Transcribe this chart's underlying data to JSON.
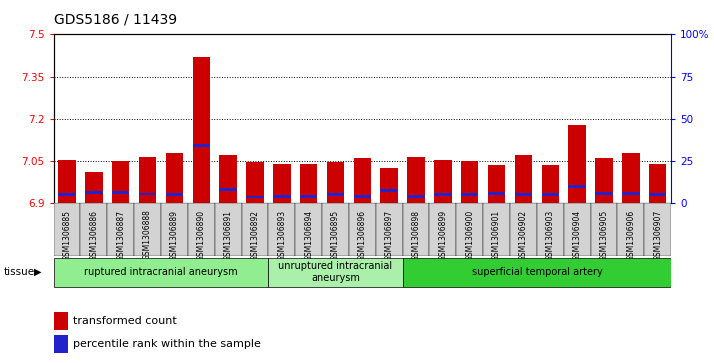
{
  "title": "GDS5186 / 11439",
  "samples": [
    "GSM1306885",
    "GSM1306886",
    "GSM1306887",
    "GSM1306888",
    "GSM1306889",
    "GSM1306890",
    "GSM1306891",
    "GSM1306892",
    "GSM1306893",
    "GSM1306894",
    "GSM1306895",
    "GSM1306896",
    "GSM1306897",
    "GSM1306898",
    "GSM1306899",
    "GSM1306900",
    "GSM1306901",
    "GSM1306902",
    "GSM1306903",
    "GSM1306904",
    "GSM1306905",
    "GSM1306906",
    "GSM1306907"
  ],
  "bar_tops": [
    7.055,
    7.01,
    7.05,
    7.065,
    7.08,
    7.42,
    7.07,
    7.045,
    7.04,
    7.04,
    7.045,
    7.06,
    7.025,
    7.065,
    7.055,
    7.05,
    7.035,
    7.07,
    7.035,
    7.18,
    7.06,
    7.08,
    7.04
  ],
  "blue_positions": [
    6.925,
    6.932,
    6.932,
    6.928,
    6.925,
    7.1,
    6.945,
    6.917,
    6.92,
    6.92,
    6.925,
    6.92,
    6.94,
    6.92,
    6.925,
    6.925,
    6.93,
    6.925,
    6.925,
    6.955,
    6.93,
    6.93,
    6.925
  ],
  "y_min": 6.9,
  "y_max": 7.5,
  "y_ticks": [
    6.9,
    7.05,
    7.2,
    7.35,
    7.5
  ],
  "right_y_ticks": [
    0,
    25,
    50,
    75,
    100
  ],
  "groups": [
    {
      "label": "ruptured intracranial aneurysm",
      "start": 0,
      "end": 8,
      "color": "#90EE90"
    },
    {
      "label": "unruptured intracranial\naneurysm",
      "start": 8,
      "end": 13,
      "color": "#aaf0aa"
    },
    {
      "label": "superficial temporal artery",
      "start": 13,
      "end": 23,
      "color": "#32CD32"
    }
  ],
  "bar_color": "#CC0000",
  "blue_color": "#2222CC",
  "plot_bg": "#FFFFFF",
  "title_fontsize": 10,
  "legend_label_red": "transformed count",
  "legend_label_blue": "percentile rank within the sample",
  "tissue_label": "tissue"
}
